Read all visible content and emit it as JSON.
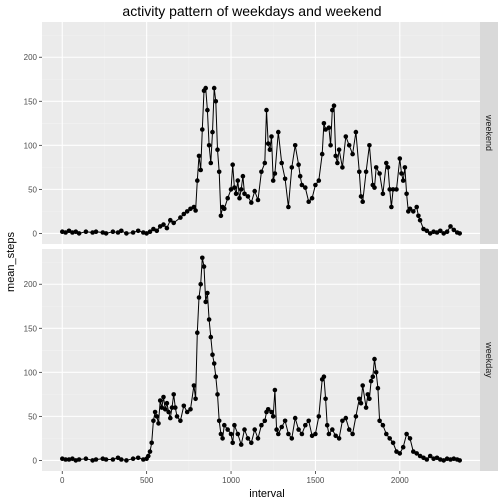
{
  "chart_data": {
    "type": "line",
    "title": "activity pattern of weekdays and weekend",
    "xlabel": "interval",
    "ylabel": "mean_steps",
    "xlim": [
      -120,
      2475
    ],
    "ylim": [
      -12,
      240
    ],
    "xticks": [
      0,
      500,
      1000,
      1500,
      2000
    ],
    "yticks": [
      0,
      50,
      100,
      150,
      200
    ],
    "grid": true,
    "facets": [
      {
        "name": "weekend",
        "points": [
          [
            0,
            2
          ],
          [
            20,
            1
          ],
          [
            40,
            3
          ],
          [
            60,
            1
          ],
          [
            80,
            2
          ],
          [
            100,
            0
          ],
          [
            140,
            2
          ],
          [
            180,
            1
          ],
          [
            200,
            2
          ],
          [
            240,
            1
          ],
          [
            260,
            0
          ],
          [
            300,
            2
          ],
          [
            330,
            1
          ],
          [
            350,
            3
          ],
          [
            380,
            0
          ],
          [
            420,
            1
          ],
          [
            450,
            3
          ],
          [
            480,
            1
          ],
          [
            500,
            0
          ],
          [
            520,
            2
          ],
          [
            540,
            5
          ],
          [
            560,
            3
          ],
          [
            580,
            8
          ],
          [
            600,
            10
          ],
          [
            620,
            6
          ],
          [
            640,
            15
          ],
          [
            660,
            12
          ],
          [
            700,
            18
          ],
          [
            720,
            22
          ],
          [
            740,
            25
          ],
          [
            760,
            28
          ],
          [
            780,
            30
          ],
          [
            790,
            26
          ],
          [
            800,
            60
          ],
          [
            810,
            88
          ],
          [
            820,
            72
          ],
          [
            830,
            118
          ],
          [
            840,
            162
          ],
          [
            850,
            165
          ],
          [
            860,
            140
          ],
          [
            870,
            100
          ],
          [
            880,
            80
          ],
          [
            890,
            115
          ],
          [
            900,
            165
          ],
          [
            910,
            150
          ],
          [
            920,
            95
          ],
          [
            930,
            70
          ],
          [
            940,
            20
          ],
          [
            950,
            30
          ],
          [
            960,
            28
          ],
          [
            980,
            40
          ],
          [
            1000,
            50
          ],
          [
            1010,
            78
          ],
          [
            1020,
            52
          ],
          [
            1030,
            45
          ],
          [
            1040,
            60
          ],
          [
            1050,
            40
          ],
          [
            1060,
            50
          ],
          [
            1070,
            65
          ],
          [
            1080,
            45
          ],
          [
            1100,
            42
          ],
          [
            1120,
            35
          ],
          [
            1140,
            48
          ],
          [
            1160,
            38
          ],
          [
            1180,
            70
          ],
          [
            1200,
            80
          ],
          [
            1210,
            140
          ],
          [
            1220,
            102
          ],
          [
            1230,
            95
          ],
          [
            1240,
            110
          ],
          [
            1250,
            60
          ],
          [
            1260,
            68
          ],
          [
            1280,
            115
          ],
          [
            1300,
            80
          ],
          [
            1320,
            62
          ],
          [
            1340,
            30
          ],
          [
            1360,
            75
          ],
          [
            1380,
            100
          ],
          [
            1400,
            78
          ],
          [
            1410,
            65
          ],
          [
            1420,
            55
          ],
          [
            1440,
            52
          ],
          [
            1460,
            36
          ],
          [
            1480,
            40
          ],
          [
            1500,
            55
          ],
          [
            1520,
            60
          ],
          [
            1540,
            90
          ],
          [
            1550,
            125
          ],
          [
            1560,
            118
          ],
          [
            1580,
            120
          ],
          [
            1590,
            100
          ],
          [
            1600,
            140
          ],
          [
            1610,
            145
          ],
          [
            1620,
            88
          ],
          [
            1630,
            80
          ],
          [
            1640,
            95
          ],
          [
            1660,
            75
          ],
          [
            1680,
            110
          ],
          [
            1700,
            100
          ],
          [
            1720,
            90
          ],
          [
            1740,
            115
          ],
          [
            1760,
            70
          ],
          [
            1770,
            42
          ],
          [
            1780,
            36
          ],
          [
            1800,
            70
          ],
          [
            1820,
            100
          ],
          [
            1840,
            55
          ],
          [
            1850,
            52
          ],
          [
            1860,
            75
          ],
          [
            1880,
            68
          ],
          [
            1900,
            45
          ],
          [
            1920,
            80
          ],
          [
            1930,
            75
          ],
          [
            1940,
            50
          ],
          [
            1950,
            30
          ],
          [
            1960,
            50
          ],
          [
            1980,
            50
          ],
          [
            2000,
            85
          ],
          [
            2010,
            68
          ],
          [
            2020,
            60
          ],
          [
            2030,
            75
          ],
          [
            2040,
            45
          ],
          [
            2050,
            25
          ],
          [
            2060,
            28
          ],
          [
            2080,
            25
          ],
          [
            2100,
            30
          ],
          [
            2110,
            20
          ],
          [
            2120,
            15
          ],
          [
            2140,
            5
          ],
          [
            2160,
            3
          ],
          [
            2180,
            0
          ],
          [
            2200,
            2
          ],
          [
            2220,
            1
          ],
          [
            2240,
            3
          ],
          [
            2260,
            0
          ],
          [
            2280,
            2
          ],
          [
            2300,
            8
          ],
          [
            2320,
            4
          ],
          [
            2340,
            1
          ],
          [
            2355,
            0
          ]
        ]
      },
      {
        "name": "weekday",
        "points": [
          [
            0,
            2
          ],
          [
            20,
            1
          ],
          [
            40,
            1
          ],
          [
            60,
            2
          ],
          [
            80,
            0
          ],
          [
            100,
            1
          ],
          [
            140,
            2
          ],
          [
            180,
            0
          ],
          [
            200,
            1
          ],
          [
            240,
            2
          ],
          [
            260,
            1
          ],
          [
            300,
            1
          ],
          [
            330,
            3
          ],
          [
            350,
            1
          ],
          [
            380,
            0
          ],
          [
            420,
            2
          ],
          [
            450,
            3
          ],
          [
            480,
            1
          ],
          [
            500,
            2
          ],
          [
            510,
            5
          ],
          [
            520,
            10
          ],
          [
            530,
            20
          ],
          [
            540,
            45
          ],
          [
            550,
            55
          ],
          [
            560,
            50
          ],
          [
            570,
            42
          ],
          [
            580,
            68
          ],
          [
            590,
            60
          ],
          [
            600,
            72
          ],
          [
            610,
            58
          ],
          [
            620,
            65
          ],
          [
            630,
            55
          ],
          [
            640,
            48
          ],
          [
            650,
            60
          ],
          [
            660,
            75
          ],
          [
            670,
            60
          ],
          [
            680,
            50
          ],
          [
            700,
            45
          ],
          [
            720,
            62
          ],
          [
            740,
            55
          ],
          [
            760,
            58
          ],
          [
            780,
            85
          ],
          [
            790,
            70
          ],
          [
            800,
            145
          ],
          [
            810,
            185
          ],
          [
            820,
            200
          ],
          [
            830,
            230
          ],
          [
            840,
            220
          ],
          [
            850,
            180
          ],
          [
            860,
            190
          ],
          [
            870,
            160
          ],
          [
            880,
            140
          ],
          [
            890,
            120
          ],
          [
            900,
            110
          ],
          [
            910,
            95
          ],
          [
            920,
            75
          ],
          [
            930,
            45
          ],
          [
            940,
            30
          ],
          [
            950,
            25
          ],
          [
            960,
            40
          ],
          [
            980,
            35
          ],
          [
            1000,
            30
          ],
          [
            1010,
            20
          ],
          [
            1020,
            40
          ],
          [
            1040,
            30
          ],
          [
            1060,
            18
          ],
          [
            1080,
            35
          ],
          [
            1100,
            25
          ],
          [
            1120,
            20
          ],
          [
            1140,
            35
          ],
          [
            1160,
            25
          ],
          [
            1180,
            40
          ],
          [
            1200,
            45
          ],
          [
            1210,
            55
          ],
          [
            1220,
            58
          ],
          [
            1240,
            55
          ],
          [
            1250,
            50
          ],
          [
            1260,
            80
          ],
          [
            1270,
            35
          ],
          [
            1280,
            30
          ],
          [
            1300,
            38
          ],
          [
            1320,
            45
          ],
          [
            1340,
            30
          ],
          [
            1360,
            25
          ],
          [
            1380,
            48
          ],
          [
            1400,
            35
          ],
          [
            1420,
            30
          ],
          [
            1440,
            40
          ],
          [
            1460,
            45
          ],
          [
            1480,
            28
          ],
          [
            1500,
            30
          ],
          [
            1520,
            50
          ],
          [
            1540,
            92
          ],
          [
            1550,
            95
          ],
          [
            1560,
            70
          ],
          [
            1570,
            40
          ],
          [
            1580,
            30
          ],
          [
            1600,
            35
          ],
          [
            1620,
            28
          ],
          [
            1640,
            25
          ],
          [
            1660,
            45
          ],
          [
            1680,
            48
          ],
          [
            1700,
            35
          ],
          [
            1720,
            30
          ],
          [
            1740,
            50
          ],
          [
            1760,
            70
          ],
          [
            1770,
            65
          ],
          [
            1780,
            85
          ],
          [
            1800,
            60
          ],
          [
            1810,
            75
          ],
          [
            1820,
            70
          ],
          [
            1830,
            90
          ],
          [
            1840,
            95
          ],
          [
            1850,
            115
          ],
          [
            1860,
            100
          ],
          [
            1870,
            82
          ],
          [
            1880,
            45
          ],
          [
            1900,
            40
          ],
          [
            1920,
            30
          ],
          [
            1940,
            25
          ],
          [
            1960,
            20
          ],
          [
            1980,
            10
          ],
          [
            2000,
            8
          ],
          [
            2020,
            15
          ],
          [
            2040,
            30
          ],
          [
            2060,
            25
          ],
          [
            2080,
            10
          ],
          [
            2100,
            8
          ],
          [
            2120,
            5
          ],
          [
            2140,
            3
          ],
          [
            2160,
            1
          ],
          [
            2180,
            5
          ],
          [
            2200,
            2
          ],
          [
            2220,
            3
          ],
          [
            2240,
            1
          ],
          [
            2260,
            0
          ],
          [
            2280,
            2
          ],
          [
            2300,
            1
          ],
          [
            2320,
            2
          ],
          [
            2340,
            1
          ],
          [
            2355,
            0
          ]
        ]
      }
    ]
  }
}
